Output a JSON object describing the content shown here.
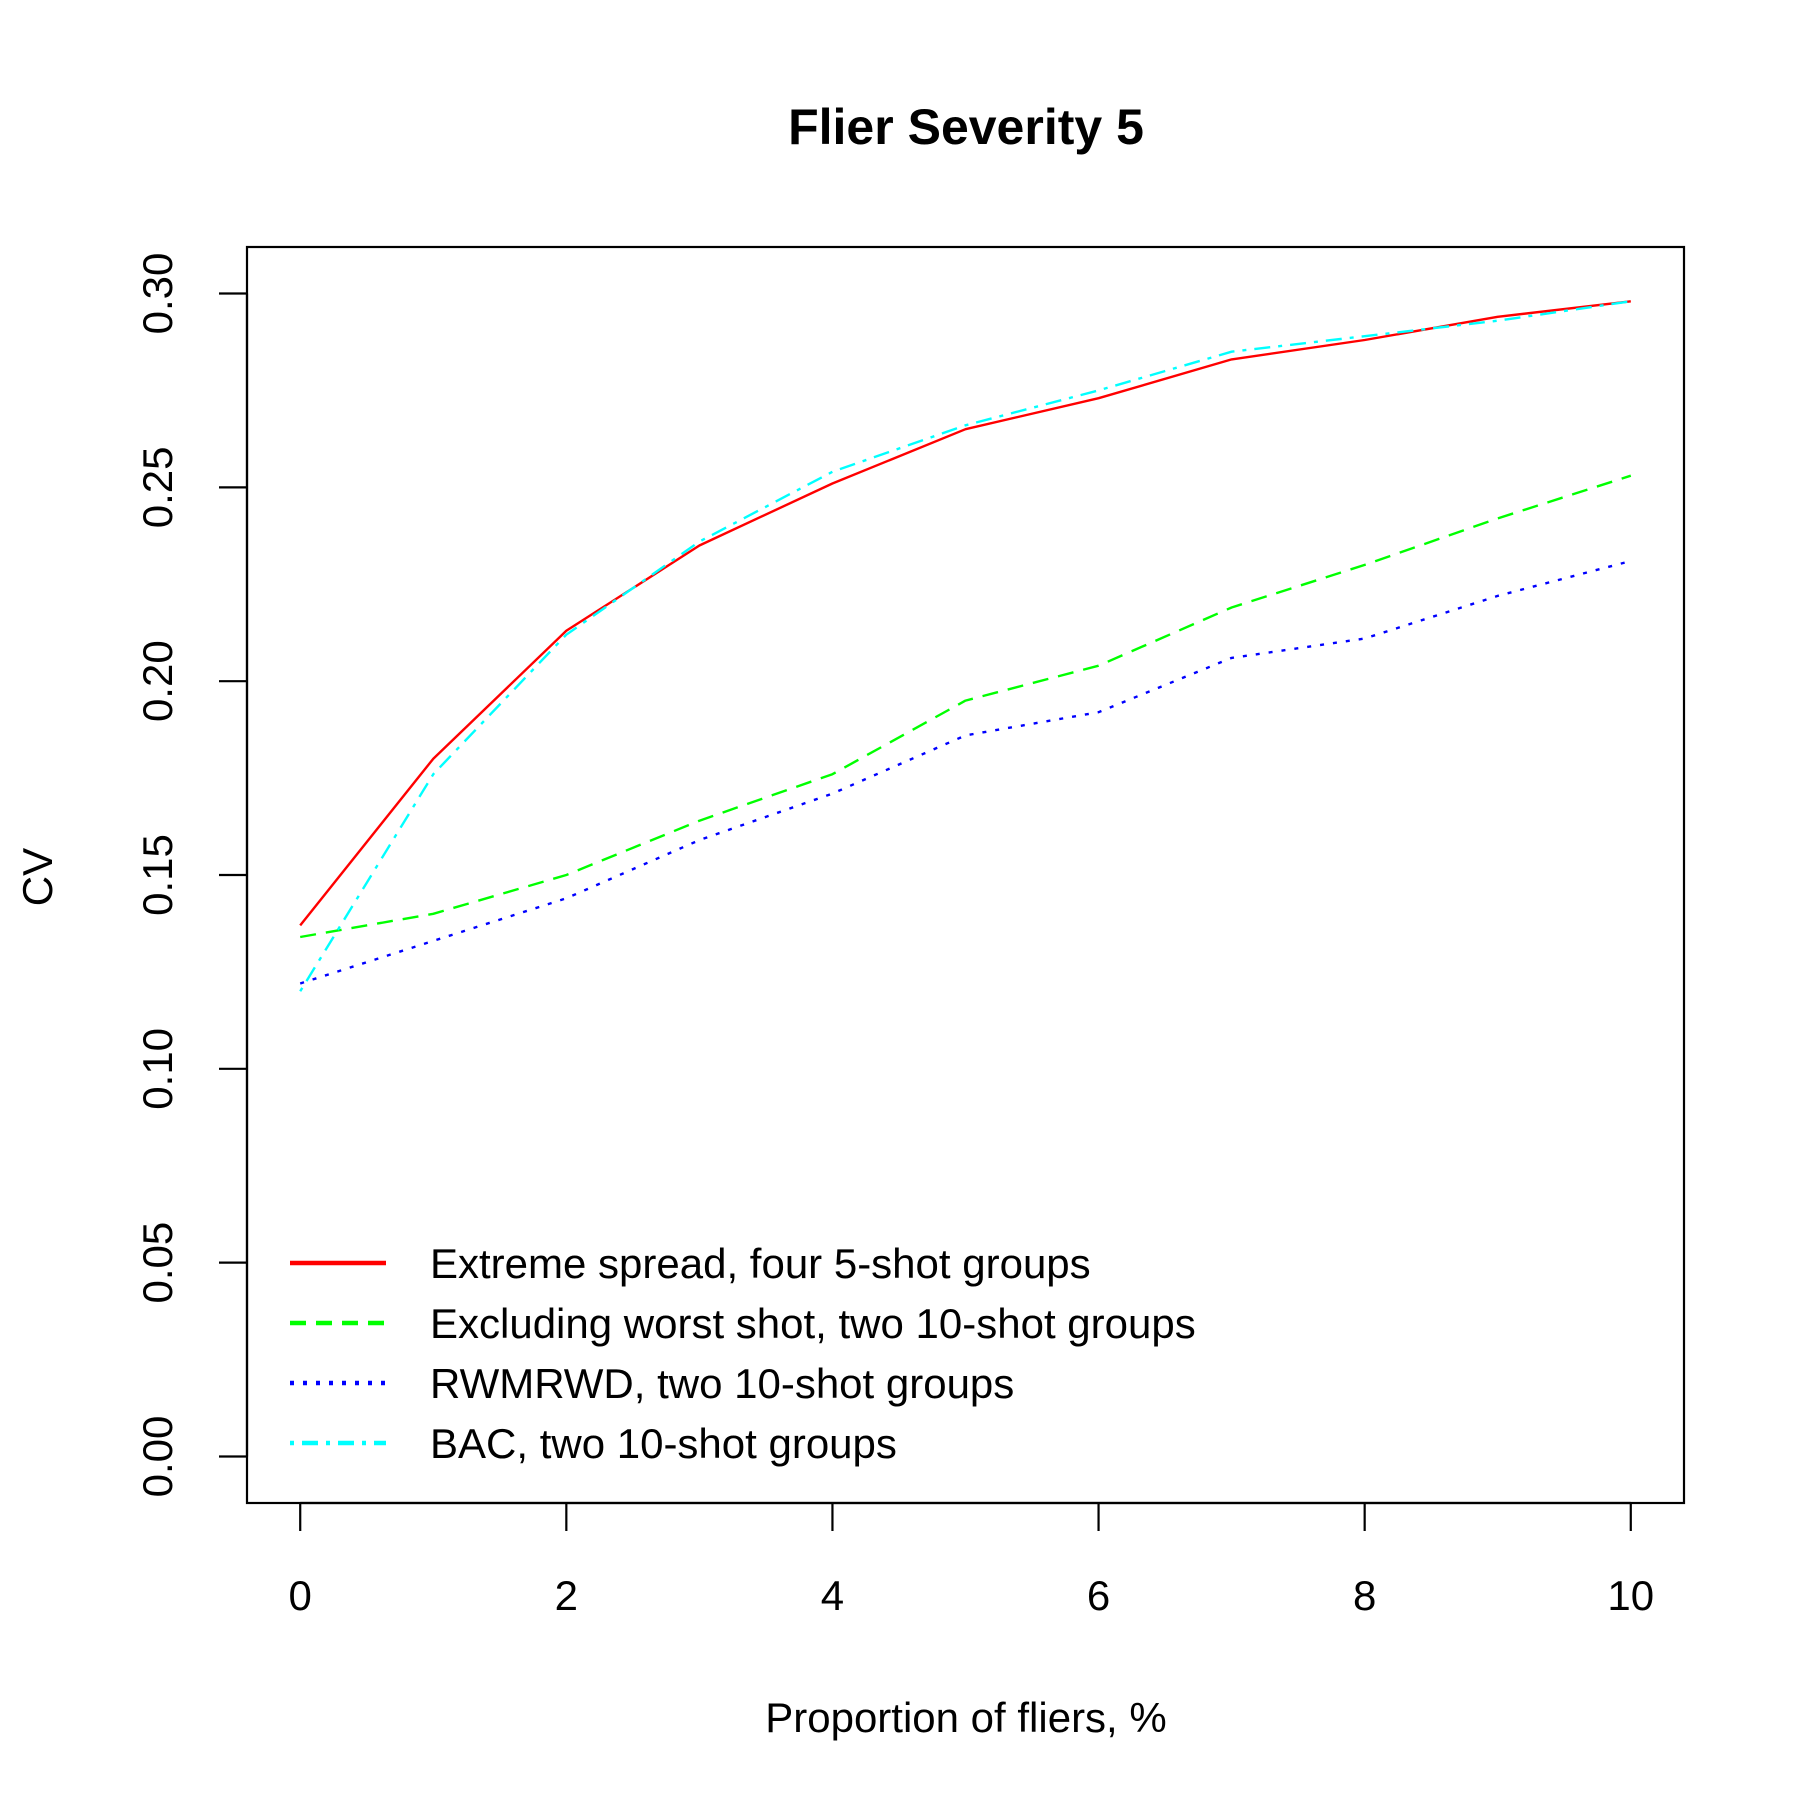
{
  "chart_data": {
    "type": "line",
    "title": "Flier Severity 5",
    "xlabel": "Proportion of fliers, %",
    "ylabel": "CV",
    "xlim": [
      -0.4,
      10.4
    ],
    "ylim": [
      -0.012,
      0.312
    ],
    "xticks": [
      0,
      2,
      4,
      6,
      8,
      10
    ],
    "xtick_labels": [
      "0",
      "2",
      "4",
      "6",
      "8",
      "10"
    ],
    "yticks": [
      0,
      0.05,
      0.1,
      0.15,
      0.2,
      0.25,
      0.3
    ],
    "ytick_labels": [
      "0.00",
      "0.05",
      "0.10",
      "0.15",
      "0.20",
      "0.25",
      "0.30"
    ],
    "grid": false,
    "legend_position": "bottom-left",
    "x": [
      0,
      1,
      2,
      3,
      4,
      5,
      6,
      7,
      8,
      9,
      10
    ],
    "series": [
      {
        "name": "Extreme spread, four 5-shot groups",
        "color": "#ff0000",
        "dash": "solid",
        "values": [
          0.137,
          0.18,
          0.213,
          0.235,
          0.251,
          0.265,
          0.273,
          0.283,
          0.288,
          0.294,
          0.298
        ]
      },
      {
        "name": "Excluding worst shot, two 10-shot groups",
        "color": "#00ff00",
        "dash": "dashed",
        "values": [
          0.134,
          0.14,
          0.15,
          0.164,
          0.176,
          0.195,
          0.204,
          0.219,
          0.23,
          0.242,
          0.253
        ]
      },
      {
        "name": "RWMRWD, two 10-shot groups",
        "color": "#0000ff",
        "dash": "dotted",
        "values": [
          0.122,
          0.133,
          0.144,
          0.159,
          0.171,
          0.186,
          0.192,
          0.206,
          0.211,
          0.222,
          0.231
        ]
      },
      {
        "name": "BAC, two 10-shot groups",
        "color": "#00ffff",
        "dash": "dotdash",
        "values": [
          0.12,
          0.176,
          0.212,
          0.236,
          0.254,
          0.266,
          0.275,
          0.285,
          0.289,
          0.293,
          0.298
        ]
      }
    ]
  }
}
